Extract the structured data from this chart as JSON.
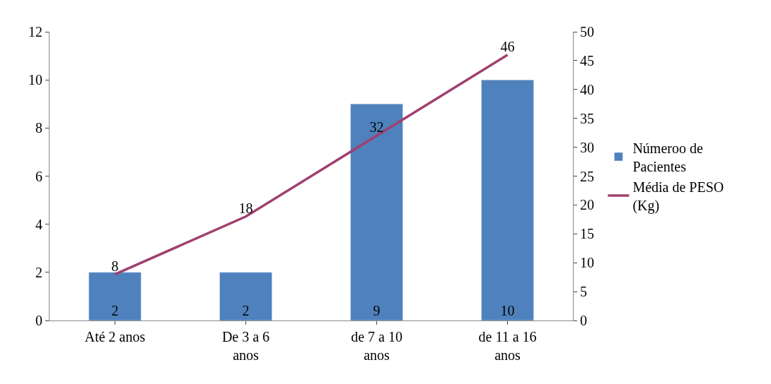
{
  "chart_data": {
    "type": "bar",
    "categories": [
      "Até 2 anos",
      "De 3 a 6 anos",
      "de 7 a 10 anos",
      "de 11 a 16 anos"
    ],
    "series": [
      {
        "name": "Númeroo de Pacientes",
        "color": "#4f81bd",
        "values": [
          2,
          2,
          9,
          10
        ]
      },
      {
        "name": "Média de PESO (Kg)",
        "type": "line",
        "axis": "y2",
        "color": "#a0406f",
        "values": [
          8,
          18,
          32,
          46
        ]
      }
    ],
    "ylim": [
      0,
      12
    ],
    "yticks": [
      0,
      2,
      4,
      6,
      8,
      10,
      12
    ],
    "y2lim": [
      0,
      50
    ],
    "y2ticks": [
      0,
      5,
      10,
      15,
      20,
      25,
      30,
      35,
      40,
      45,
      50
    ],
    "data_labels": true,
    "legend": "right",
    "marker": "none",
    "line_style": "solid"
  }
}
